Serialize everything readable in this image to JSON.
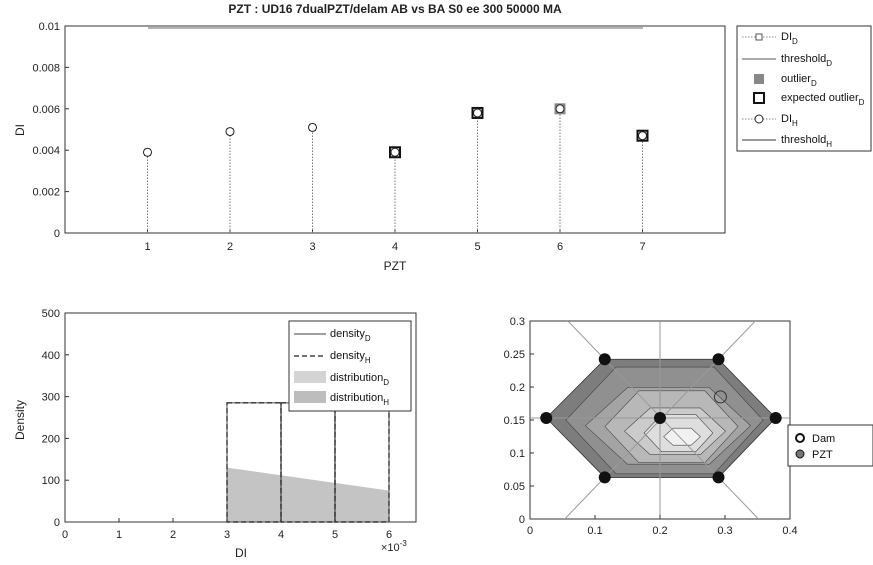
{
  "chart_data": [
    {
      "type": "scatter",
      "title": "PZT : UD16 7dualPZT/delam   AB vs BA   S0 ee   300   50000   MA",
      "xlabel": "PZT",
      "ylabel": "DI",
      "xlim": [
        0,
        8
      ],
      "ylim": [
        0,
        0.01
      ],
      "xticks": [
        "1",
        "2",
        "3",
        "4",
        "5",
        "6",
        "7"
      ],
      "yticks": [
        "0",
        "0.002",
        "0.004",
        "0.006",
        "0.008",
        "0.01"
      ],
      "series": [
        {
          "name": "DI",
          "sub": "D",
          "x": [
            1,
            2,
            3,
            4,
            5,
            6,
            7
          ],
          "y": [
            0.0039,
            0.0049,
            0.0051,
            0.0039,
            0.0058,
            0.006,
            0.0047
          ]
        },
        {
          "name": "outlier",
          "sub": "D",
          "x": [
            6
          ],
          "y": [
            0.006
          ]
        },
        {
          "name": "expected outlier",
          "sub": "D",
          "x": [
            4,
            5,
            7
          ],
          "y": [
            0.0039,
            0.0058,
            0.0047
          ]
        },
        {
          "name": "DI",
          "sub": "H",
          "x": [
            1,
            2,
            3,
            4,
            5,
            6,
            7
          ],
          "y": [
            0.0039,
            0.0049,
            0.0051,
            0.0039,
            0.0058,
            0.006,
            0.0047
          ]
        }
      ],
      "legend": [
        {
          "label": "DI",
          "sub": "D"
        },
        {
          "label": "threshold",
          "sub": "D"
        },
        {
          "label": "outlier",
          "sub": "D"
        },
        {
          "label": "expected outlier",
          "sub": "D"
        },
        {
          "label": "DI",
          "sub": "H"
        },
        {
          "label": "threshold",
          "sub": "H"
        }
      ],
      "legend_position": "outside-right"
    },
    {
      "type": "bar",
      "xlabel": "DI",
      "ylabel": "Density",
      "xlim": [
        0,
        6.5
      ],
      "ylim": [
        0,
        500
      ],
      "xticks": [
        "0",
        "1",
        "2",
        "3",
        "4",
        "5",
        "6"
      ],
      "yticks": [
        "0",
        "100",
        "200",
        "300",
        "400",
        "500"
      ],
      "x_multiplier": "×10",
      "x_multiplier_exp": "-3",
      "bins": [
        [
          3,
          4
        ],
        [
          4,
          5
        ],
        [
          5,
          6
        ]
      ],
      "density_D": [
        285,
        285,
        285
      ],
      "density_H": [
        285,
        285,
        285
      ],
      "distribution_D": [
        [
          3,
          130
        ],
        [
          6,
          75
        ]
      ],
      "distribution_H": [
        [
          3,
          130
        ],
        [
          6,
          75
        ]
      ],
      "legend": [
        {
          "label": "density",
          "sub": "D"
        },
        {
          "label": "density",
          "sub": "H"
        },
        {
          "label": "distribution",
          "sub": "D"
        },
        {
          "label": "distribution",
          "sub": "H"
        }
      ],
      "legend_position": "top-right"
    },
    {
      "type": "heatmap",
      "xlim": [
        0,
        0.4
      ],
      "ylim": [
        0,
        0.3
      ],
      "xticks": [
        "0",
        "0.1",
        "0.2",
        "0.3",
        "0.4"
      ],
      "yticks": [
        "0",
        "0.05",
        "0.1",
        "0.15",
        "0.2",
        "0.25",
        "0.3"
      ],
      "pzt_locations": [
        [
          0.025,
          0.153
        ],
        [
          0.115,
          0.242
        ],
        [
          0.29,
          0.242
        ],
        [
          0.378,
          0.153
        ],
        [
          0.29,
          0.063
        ],
        [
          0.115,
          0.063
        ],
        [
          0.2,
          0.153
        ]
      ],
      "damage_location": [
        0.293,
        0.185
      ],
      "hexagon": [
        [
          0.025,
          0.153
        ],
        [
          0.115,
          0.242
        ],
        [
          0.29,
          0.242
        ],
        [
          0.378,
          0.153
        ],
        [
          0.29,
          0.063
        ],
        [
          0.115,
          0.063
        ]
      ],
      "legend": [
        {
          "label": "Dam"
        },
        {
          "label": "PZT"
        }
      ],
      "legend_position": "outside-right"
    }
  ]
}
